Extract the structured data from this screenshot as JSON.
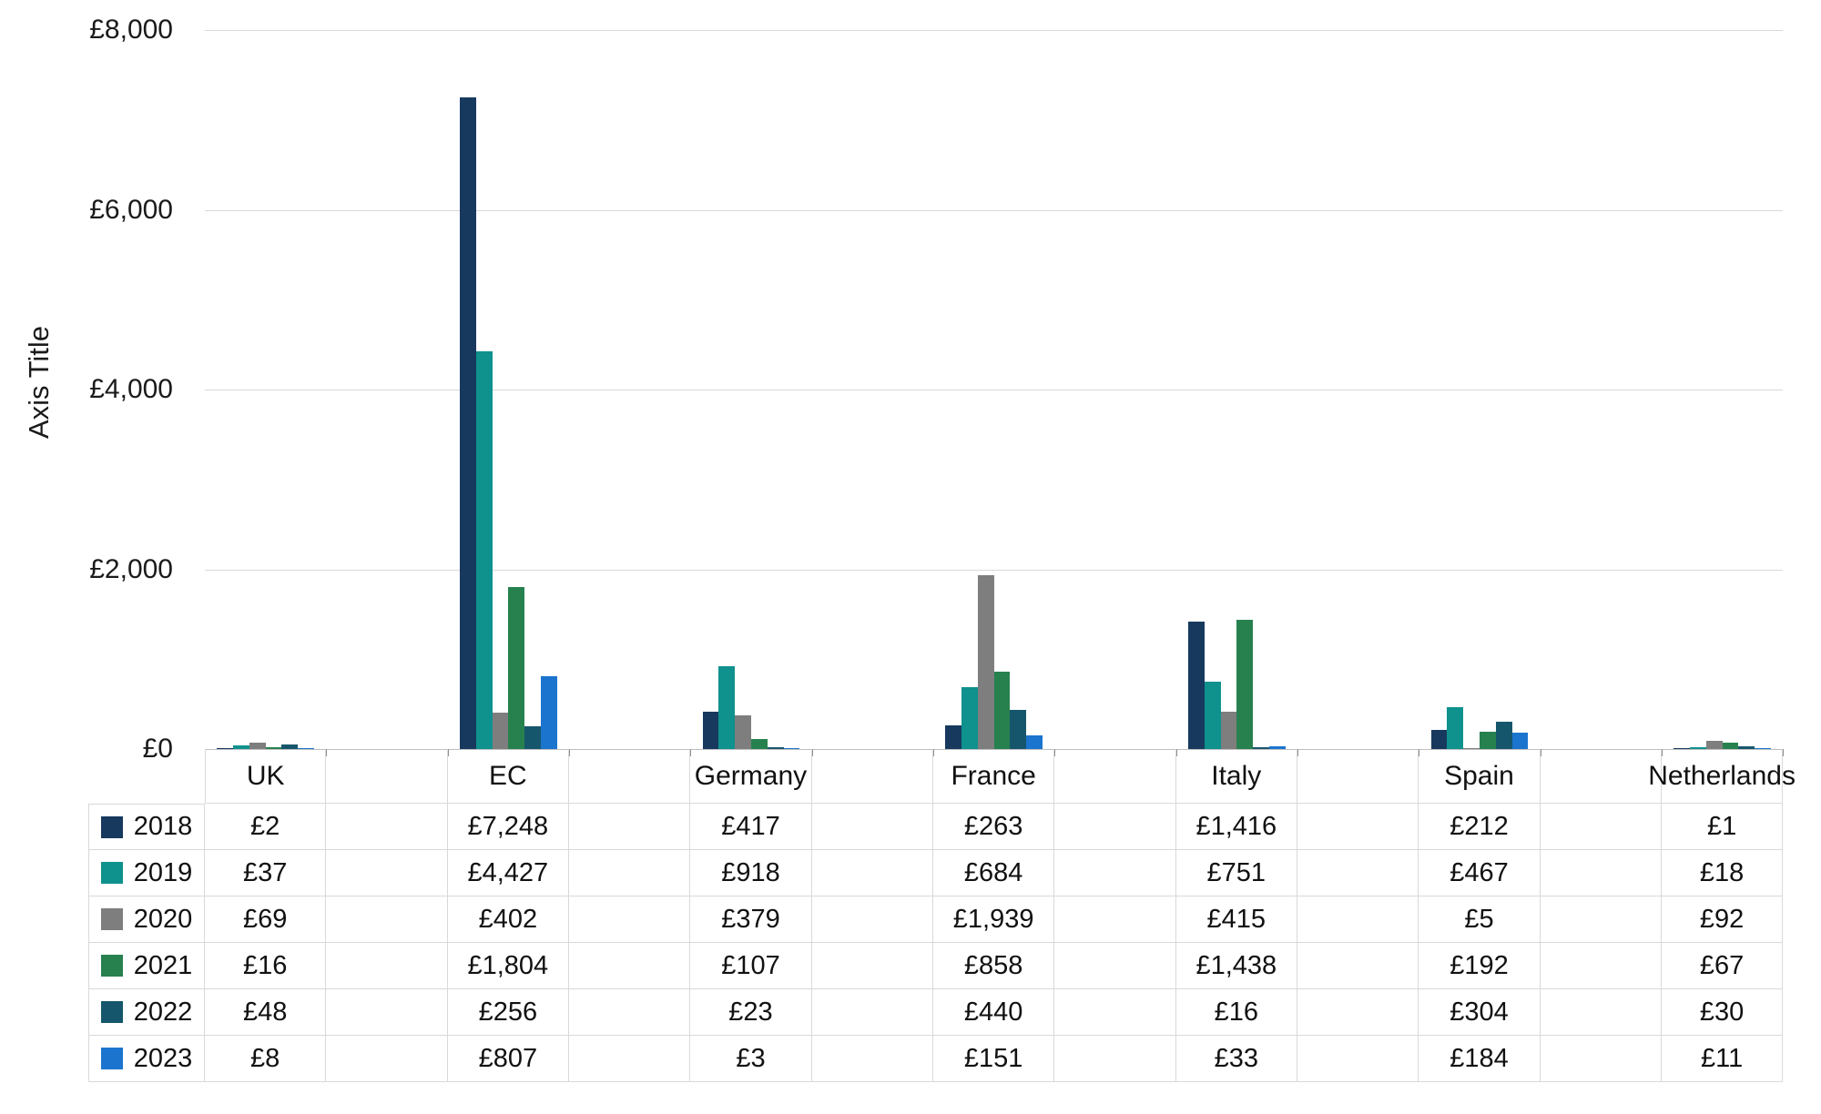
{
  "chart_data": {
    "type": "bar",
    "title": "",
    "xlabel": "",
    "ylabel": "Axis Title",
    "ylim": [
      0,
      8000
    ],
    "grid": true,
    "legend_position": "data-table-left-keys",
    "currency_prefix": "£",
    "y_ticks": [
      {
        "value": 8000,
        "label": "£8,000"
      },
      {
        "value": 6000,
        "label": "£6,000"
      },
      {
        "value": 4000,
        "label": "£4,000"
      },
      {
        "value": 2000,
        "label": "£2,000"
      },
      {
        "value": 0,
        "label": "£0"
      }
    ],
    "categories": [
      "UK",
      "EC",
      "Germany",
      "France",
      "Italy",
      "Spain",
      "Netherlands"
    ],
    "series": [
      {
        "name": "2018",
        "color": "#17395E",
        "values": [
          2,
          7248,
          417,
          263,
          1416,
          212,
          1
        ],
        "labels": [
          "£2",
          "£7,248",
          "£417",
          "£263",
          "£1,416",
          "£212",
          "£1"
        ]
      },
      {
        "name": "2019",
        "color": "#0F918E",
        "values": [
          37,
          4427,
          918,
          684,
          751,
          467,
          18
        ],
        "labels": [
          "£37",
          "£4,427",
          "£918",
          "£684",
          "£751",
          "£467",
          "£18"
        ]
      },
      {
        "name": "2020",
        "color": "#7E7E7E",
        "values": [
          69,
          402,
          379,
          1939,
          415,
          5,
          92
        ],
        "labels": [
          "£69",
          "£402",
          "£379",
          "£1,939",
          "£415",
          "£5",
          "£92"
        ]
      },
      {
        "name": "2021",
        "color": "#27814F",
        "values": [
          16,
          1804,
          107,
          858,
          1438,
          192,
          67
        ],
        "labels": [
          "£16",
          "£1,804",
          "£107",
          "£858",
          "£1,438",
          "£192",
          "£67"
        ]
      },
      {
        "name": "2022",
        "color": "#16566C",
        "values": [
          48,
          256,
          23,
          440,
          16,
          304,
          30
        ],
        "labels": [
          "£48",
          "£256",
          "£23",
          "£440",
          "£16",
          "£304",
          "£30"
        ]
      },
      {
        "name": "2023",
        "color": "#1B74CE",
        "values": [
          8,
          807,
          3,
          151,
          33,
          184,
          11
        ],
        "labels": [
          "£8",
          "£807",
          "£3",
          "£151",
          "£33",
          "£184",
          "£11"
        ]
      }
    ]
  }
}
